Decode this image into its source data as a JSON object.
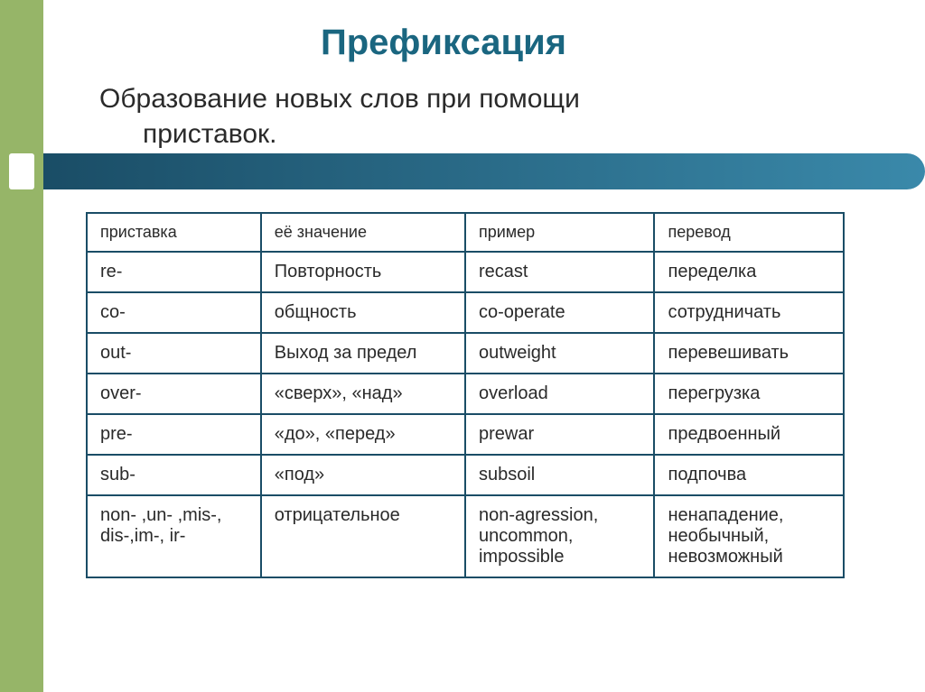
{
  "title": "Префиксация",
  "subtitle_line1": "Образование новых слов при помощи",
  "subtitle_line2": "приставок.",
  "table": {
    "headers": [
      "приставка",
      "её значение",
      "пример",
      "перевод"
    ],
    "rows": [
      [
        "re-",
        "Повторность",
        "recast",
        "переделка"
      ],
      [
        "co-",
        "общность",
        "co-operate",
        "сотрудничать"
      ],
      [
        "out-",
        "Выход за предел",
        "outweight",
        "перевешивать"
      ],
      [
        "over-",
        "«сверх», «над»",
        "overload",
        "перегрузка"
      ],
      [
        "pre-",
        "«до», «перед»",
        "prewar",
        "предвоенный"
      ],
      [
        "sub-",
        "«под»",
        "subsoil",
        "подпочва"
      ],
      [
        "non- ,un- ,mis-, dis-,im-, ir-",
        "отрицательное",
        "non-agression, uncommon, impossible",
        "ненападение, необычный, невозможный"
      ]
    ]
  },
  "colors": {
    "accent_green": "#96b568",
    "title_teal": "#1a6680",
    "border_dark": "#1a4d66",
    "text": "#2a2a2a"
  }
}
